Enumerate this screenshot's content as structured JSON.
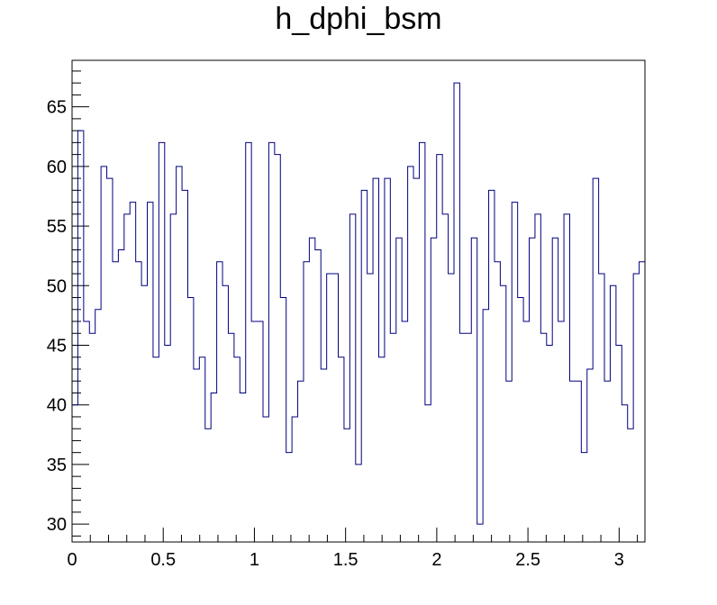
{
  "chart_data": {
    "type": "line",
    "style": "step histogram",
    "title": "h_dphi_bsm",
    "xlabel": "",
    "ylabel": "",
    "xlim": [
      0,
      3.1416
    ],
    "ylim": [
      28.5,
      68.9
    ],
    "x_ticks": [
      {
        "value": 0,
        "label": "0"
      },
      {
        "value": 0.5,
        "label": "0.5"
      },
      {
        "value": 1,
        "label": "1"
      },
      {
        "value": 1.5,
        "label": "1.5"
      },
      {
        "value": 2,
        "label": "2"
      },
      {
        "value": 2.5,
        "label": "2.5"
      },
      {
        "value": 3,
        "label": "3"
      }
    ],
    "y_ticks": [
      {
        "value": 30,
        "label": "30"
      },
      {
        "value": 35,
        "label": "35"
      },
      {
        "value": 40,
        "label": "40"
      },
      {
        "value": 45,
        "label": "45"
      },
      {
        "value": 50,
        "label": "50"
      },
      {
        "value": 55,
        "label": "55"
      },
      {
        "value": 60,
        "label": "60"
      },
      {
        "value": 65,
        "label": "65"
      }
    ],
    "grid": false,
    "legend": false,
    "colors": {
      "line": "#000080",
      "axes": "#000000",
      "background": "#ffffff"
    },
    "series": [
      {
        "bin_edges_range": [
          0,
          3.1416
        ],
        "values": [
          40,
          63,
          47,
          46,
          48,
          60,
          59,
          52,
          53,
          56,
          57,
          52,
          50,
          57,
          44,
          62,
          45,
          56,
          60,
          58,
          49,
          43,
          44,
          38,
          41,
          52,
          50,
          46,
          44,
          41,
          62,
          47,
          47,
          39,
          62,
          61,
          49,
          36,
          39,
          42,
          52,
          54,
          53,
          43,
          51,
          51,
          44,
          38,
          56,
          35,
          58,
          51,
          59,
          44,
          59,
          46,
          54,
          47,
          60,
          59,
          62,
          40,
          54,
          61,
          56,
          51,
          67,
          46,
          46,
          54,
          30,
          48,
          58,
          52,
          50,
          42,
          57,
          49,
          47,
          54,
          56,
          46,
          45,
          54,
          47,
          56,
          42,
          42,
          36,
          43,
          59,
          51,
          42,
          50,
          45,
          40,
          38,
          51,
          52
        ]
      }
    ]
  }
}
